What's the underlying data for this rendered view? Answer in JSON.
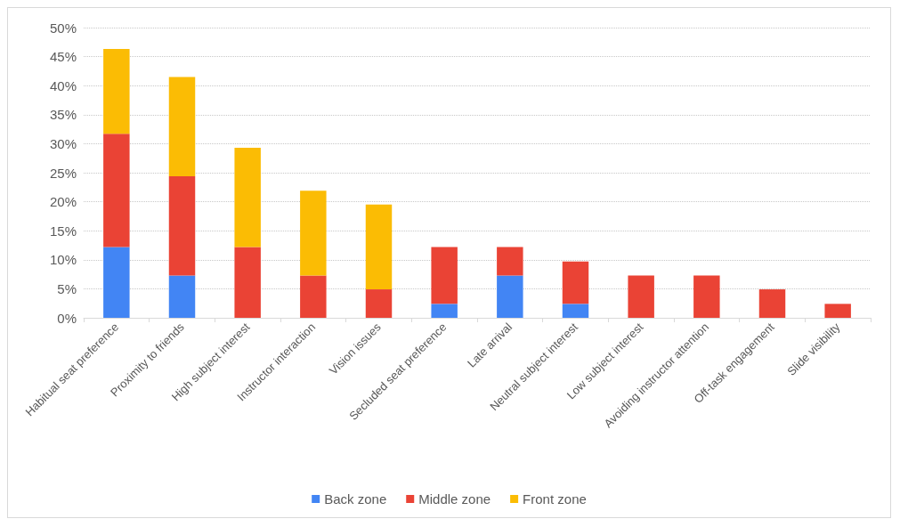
{
  "chart_data": {
    "type": "bar",
    "stacked": true,
    "categories": [
      "Habitual seat preference",
      "Proximity to friends",
      "High subject interest",
      "Instructor interaction",
      "Vision issues",
      "Secluded seat preference",
      "Late arrival",
      "Neutral subject interest",
      "Low subject interest",
      "Avoiding instructor attention",
      "Off-task engagement",
      "Slide visibility"
    ],
    "series": [
      {
        "name": "Back zone",
        "color": "#4285f4",
        "values": [
          12.2,
          7.3,
          0,
          0,
          0,
          2.4,
          7.3,
          2.4,
          0,
          0,
          0,
          0
        ]
      },
      {
        "name": "Middle zone",
        "color": "#ea4335",
        "values": [
          19.5,
          17.1,
          12.2,
          7.3,
          4.9,
          9.8,
          4.9,
          7.3,
          7.3,
          7.3,
          4.9,
          2.4
        ]
      },
      {
        "name": "Front zone",
        "color": "#fbbc04",
        "values": [
          14.6,
          17.1,
          17.1,
          14.6,
          14.6,
          0,
          0,
          0,
          0,
          0,
          0,
          0
        ]
      }
    ],
    "ylim": [
      0,
      50
    ],
    "yticks": [
      {
        "value": 0,
        "label": "0%"
      },
      {
        "value": 5,
        "label": "5%"
      },
      {
        "value": 10,
        "label": "10%"
      },
      {
        "value": 15,
        "label": "15%"
      },
      {
        "value": 20,
        "label": "20%"
      },
      {
        "value": 25,
        "label": "25%"
      },
      {
        "value": 30,
        "label": "30%"
      },
      {
        "value": 35,
        "label": "35%"
      },
      {
        "value": 40,
        "label": "40%"
      },
      {
        "value": 45,
        "label": "45%"
      },
      {
        "value": 50,
        "label": "50%"
      }
    ],
    "grid": "y",
    "legend": "bottom"
  }
}
